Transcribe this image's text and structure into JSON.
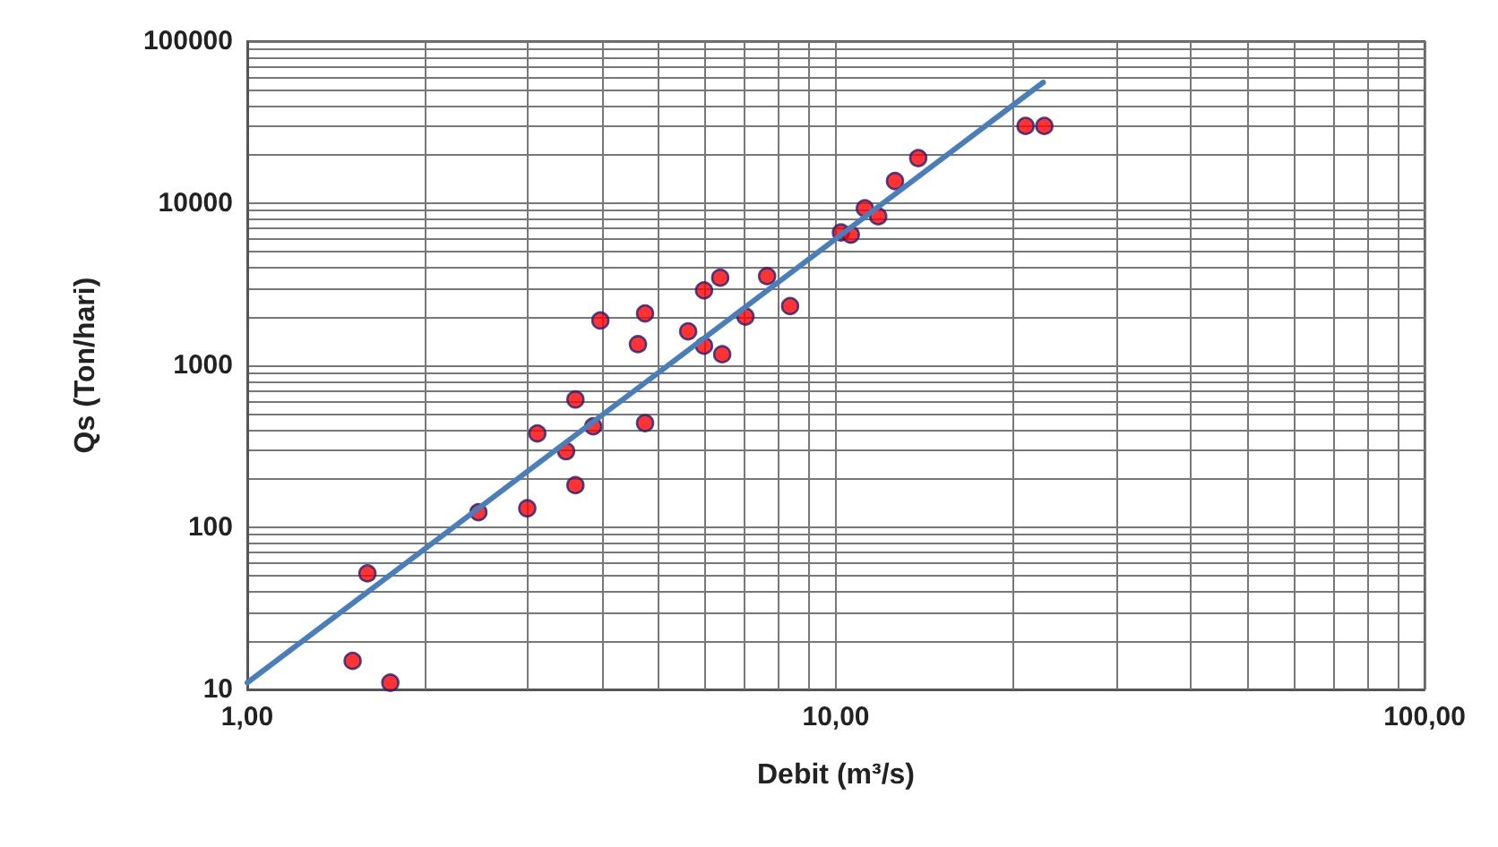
{
  "chart_data": {
    "type": "scatter",
    "xlabel": "Debit (m³/s)",
    "ylabel": "Qs (Ton/hari)",
    "log": "xy",
    "grid": true,
    "marker": "circle",
    "xlim": [
      1,
      100
    ],
    "ylim": [
      10,
      100000
    ],
    "xticks": [
      {
        "value": 1,
        "label": "1,00"
      },
      {
        "value": 2,
        "label": null
      },
      {
        "value": 3,
        "label": null
      },
      {
        "value": 4,
        "label": null
      },
      {
        "value": 5,
        "label": null
      },
      {
        "value": 6,
        "label": null
      },
      {
        "value": 7,
        "label": null
      },
      {
        "value": 8,
        "label": null
      },
      {
        "value": 9,
        "label": null
      },
      {
        "value": 10,
        "label": "10,00"
      },
      {
        "value": 20,
        "label": null
      },
      {
        "value": 30,
        "label": null
      },
      {
        "value": 40,
        "label": null
      },
      {
        "value": 50,
        "label": null
      },
      {
        "value": 60,
        "label": null
      },
      {
        "value": 70,
        "label": null
      },
      {
        "value": 80,
        "label": null
      },
      {
        "value": 90,
        "label": null
      },
      {
        "value": 100,
        "label": "100,00"
      }
    ],
    "yticks": [
      10,
      {
        "value": 20,
        "label": null
      },
      {
        "value": 30,
        "label": null
      },
      {
        "value": 40,
        "label": null
      },
      {
        "value": 50,
        "label": null
      },
      {
        "value": 60,
        "label": null
      },
      {
        "value": 70,
        "label": null
      },
      {
        "value": 80,
        "label": null
      },
      {
        "value": 90,
        "label": null
      },
      100,
      {
        "value": 200,
        "label": null
      },
      {
        "value": 300,
        "label": null
      },
      {
        "value": 400,
        "label": null
      },
      {
        "value": 500,
        "label": null
      },
      {
        "value": 600,
        "label": null
      },
      {
        "value": 700,
        "label": null
      },
      {
        "value": 800,
        "label": null
      },
      {
        "value": 900,
        "label": null
      },
      1000,
      {
        "value": 2000,
        "label": null
      },
      {
        "value": 3000,
        "label": null
      },
      {
        "value": 4000,
        "label": null
      },
      {
        "value": 5000,
        "label": null
      },
      {
        "value": 6000,
        "label": null
      },
      {
        "value": 7000,
        "label": null
      },
      {
        "value": 8000,
        "label": null
      },
      {
        "value": 9000,
        "label": null
      },
      10000,
      {
        "value": 20000,
        "label": null
      },
      {
        "value": 30000,
        "label": null
      },
      {
        "value": 40000,
        "label": null
      },
      {
        "value": 50000,
        "label": null
      },
      {
        "value": 60000,
        "label": null
      },
      {
        "value": 70000,
        "label": null
      },
      {
        "value": 80000,
        "label": null
      },
      {
        "value": 90000,
        "label": null
      },
      100000
    ],
    "series": [
      {
        "color": "#ff0000",
        "x": [
          1.51,
          1.6,
          1.75,
          2.47,
          2.99,
          3.11,
          3.48,
          3.61,
          3.61,
          3.87,
          3.98,
          4.61,
          4.74,
          4.74,
          5.61,
          5.97,
          5.97,
          6.36,
          6.41,
          7.02,
          7.64,
          8.36,
          10.2,
          10.6,
          11.2,
          11.8,
          12.6,
          13.8,
          21,
          22.6
        ],
        "values": [
          15,
          52,
          11,
          124,
          131,
          380,
          295,
          615,
          182,
          420,
          1890,
          1350,
          2090,
          440,
          1620,
          2900,
          1320,
          3470,
          1170,
          2000,
          3550,
          2320,
          6600,
          6400,
          9300,
          8300,
          13700,
          19000,
          30000,
          30000
        ]
      },
      {
        "type": "line",
        "color": "#4a7ebb",
        "marker": "none",
        "x": [
          1,
          22.5
        ],
        "values": [
          11,
          55700
        ]
      }
    ]
  }
}
